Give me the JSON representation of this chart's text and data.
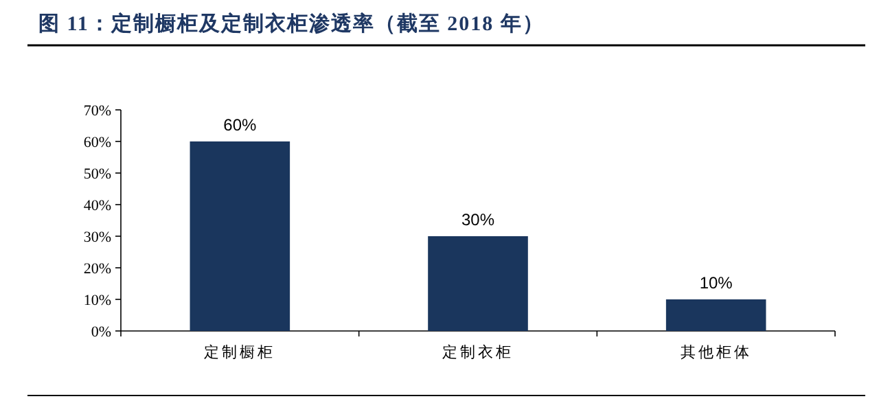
{
  "chart_data": {
    "type": "bar",
    "title": "图 11：定制橱柜及定制衣柜渗透率（截至 2018 年）",
    "categories": [
      "定制橱柜",
      "定制衣柜",
      "其他柜体"
    ],
    "values": [
      60,
      30,
      10
    ],
    "color": "#1a365d",
    "value_labels": [
      "60%",
      "30%",
      "10%"
    ],
    "ylim": [
      0,
      70
    ],
    "yticks": [
      {
        "value": 0,
        "label": "0%"
      },
      {
        "value": 10,
        "label": "10%"
      },
      {
        "value": 20,
        "label": "20%"
      },
      {
        "value": 30,
        "label": "30%"
      },
      {
        "value": 40,
        "label": "40%"
      },
      {
        "value": 50,
        "label": "50%"
      },
      {
        "value": 60,
        "label": "60%"
      },
      {
        "value": 70,
        "label": "70%"
      }
    ],
    "grid": false
  }
}
